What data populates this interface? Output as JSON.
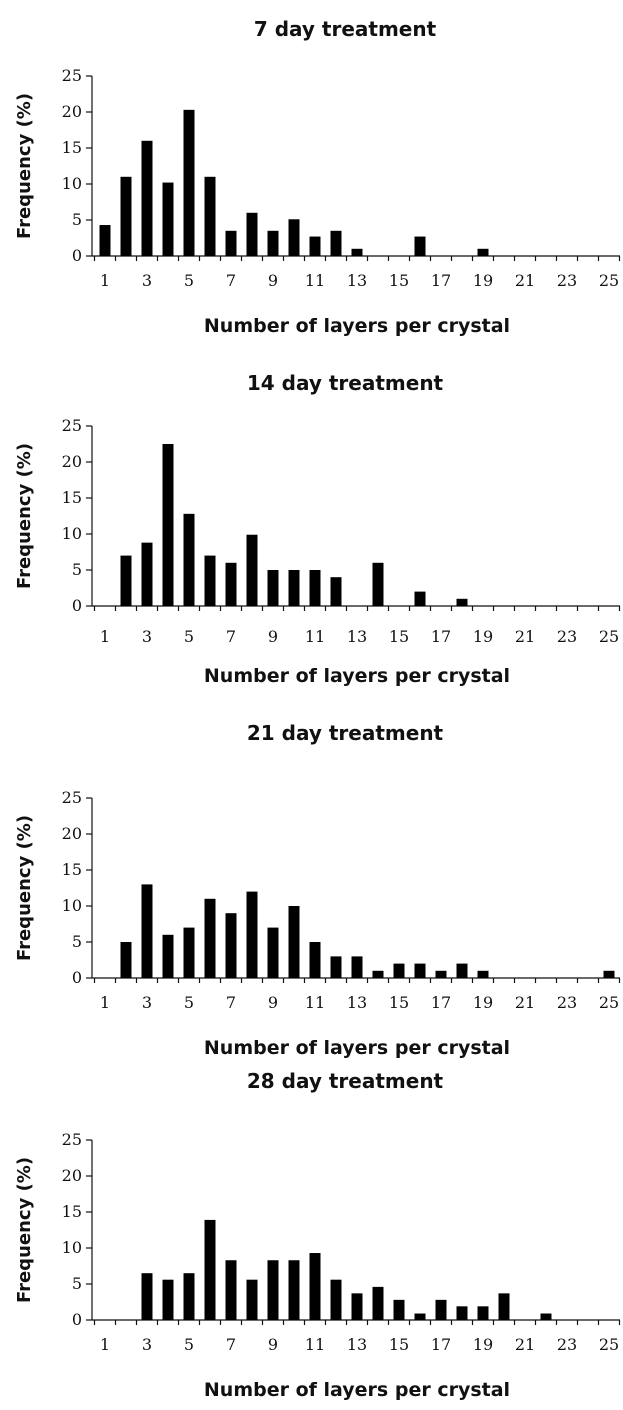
{
  "chart_data": [
    {
      "type": "bar",
      "title": "7 day treatment",
      "xlabel": "Number of layers per crystal",
      "ylabel": "Frequency (%)",
      "ylim": [
        0,
        25
      ],
      "yticks": [
        "0",
        "5",
        "10",
        "15",
        "20",
        "25"
      ],
      "xticks": [
        "1",
        "3",
        "5",
        "7",
        "9",
        "11",
        "13",
        "15",
        "17",
        "19",
        "21",
        "23",
        "25"
      ],
      "x": [
        1,
        2,
        3,
        4,
        5,
        6,
        7,
        8,
        9,
        10,
        11,
        12,
        13,
        14,
        15,
        16,
        17,
        18,
        19,
        20,
        21,
        22,
        23,
        24,
        25
      ],
      "values": [
        4.3,
        11,
        16,
        10.2,
        20.3,
        11,
        3.5,
        6,
        3.5,
        5.1,
        2.7,
        3.5,
        1,
        0,
        0,
        2.7,
        0,
        0,
        1,
        0,
        0,
        0,
        0,
        0,
        0
      ],
      "grid": false
    },
    {
      "type": "bar",
      "title": "14 day treatment",
      "xlabel": "Number of layers per crystal",
      "ylabel": "Frequency (%)",
      "ylim": [
        0,
        25
      ],
      "yticks": [
        "0",
        "5",
        "10",
        "15",
        "20",
        "25"
      ],
      "xticks": [
        "1",
        "3",
        "5",
        "7",
        "9",
        "11",
        "13",
        "15",
        "17",
        "19",
        "21",
        "23",
        "25"
      ],
      "x": [
        1,
        2,
        3,
        4,
        5,
        6,
        7,
        8,
        9,
        10,
        11,
        12,
        13,
        14,
        15,
        16,
        17,
        18,
        19,
        20,
        21,
        22,
        23,
        24,
        25
      ],
      "values": [
        0,
        7,
        8.8,
        22.5,
        12.8,
        7,
        6,
        9.9,
        5,
        5,
        5,
        4,
        0,
        6,
        0,
        2,
        0,
        1,
        0,
        0,
        0,
        0,
        0,
        0,
        0
      ],
      "grid": false
    },
    {
      "type": "bar",
      "title": "21 day treatment",
      "xlabel": "Number of layers per crystal",
      "ylabel": "Frequency (%)",
      "ylim": [
        0,
        25
      ],
      "yticks": [
        "0",
        "5",
        "10",
        "15",
        "20",
        "25"
      ],
      "xticks": [
        "1",
        "3",
        "5",
        "7",
        "9",
        "11",
        "13",
        "15",
        "17",
        "19",
        "21",
        "23",
        "25"
      ],
      "x": [
        1,
        2,
        3,
        4,
        5,
        6,
        7,
        8,
        9,
        10,
        11,
        12,
        13,
        14,
        15,
        16,
        17,
        18,
        19,
        20,
        21,
        22,
        23,
        24,
        25
      ],
      "values": [
        0,
        5,
        13,
        6,
        7,
        11,
        9,
        12,
        7,
        10,
        5,
        3,
        3,
        1,
        2,
        2,
        1,
        2,
        1,
        0,
        0,
        0,
        0,
        0,
        1
      ],
      "grid": false
    },
    {
      "type": "bar",
      "title": "28 day treatment",
      "xlabel": "Number of layers per crystal",
      "ylabel": "Frequency (%)",
      "ylim": [
        0,
        25
      ],
      "yticks": [
        "0",
        "5",
        "10",
        "15",
        "20",
        "25"
      ],
      "xticks": [
        "1",
        "3",
        "5",
        "7",
        "9",
        "11",
        "13",
        "15",
        "17",
        "19",
        "21",
        "23",
        "25"
      ],
      "x": [
        1,
        2,
        3,
        4,
        5,
        6,
        7,
        8,
        9,
        10,
        11,
        12,
        13,
        14,
        15,
        16,
        17,
        18,
        19,
        20,
        21,
        22,
        23,
        24,
        25
      ],
      "values": [
        0,
        0,
        6.5,
        5.6,
        6.5,
        13.9,
        8.3,
        5.6,
        8.3,
        8.3,
        9.3,
        5.6,
        3.7,
        4.6,
        2.8,
        0.9,
        2.8,
        1.9,
        1.9,
        3.7,
        0,
        0.9,
        0,
        0,
        0
      ],
      "grid": false
    }
  ]
}
